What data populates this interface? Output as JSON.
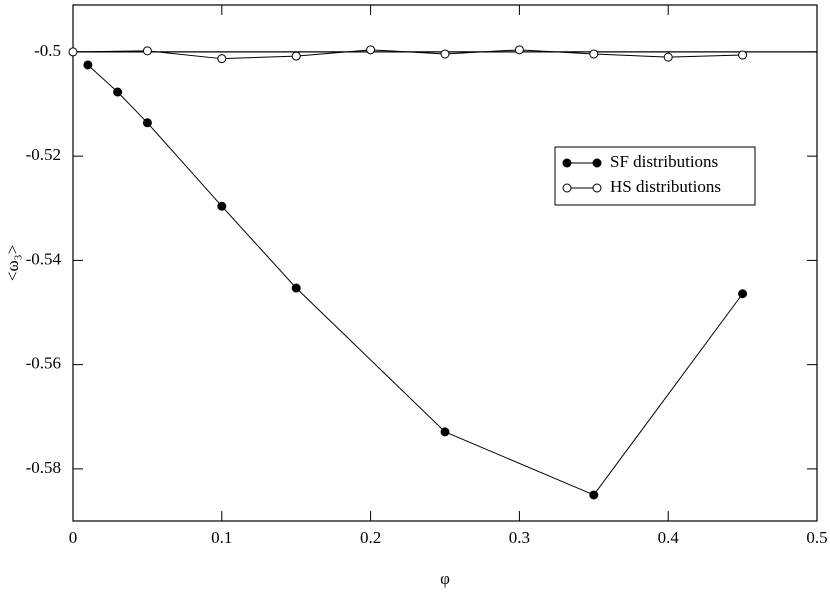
{
  "chart_data": {
    "type": "line",
    "x_label": "φ",
    "y_label": "<ω₃>",
    "xlim": [
      0,
      0.5
    ],
    "ylim": [
      -0.59,
      -0.491
    ],
    "xticks": [
      0,
      0.1,
      0.2,
      0.3,
      0.4,
      0.5
    ],
    "yticks": [
      -0.5,
      -0.52,
      -0.54,
      -0.56,
      -0.58
    ],
    "reference_line": -0.5,
    "legend_position": "right",
    "series": [
      {
        "name": "SF distributions",
        "color": "#000000",
        "marker": "filled",
        "x": [
          0.01,
          0.03,
          0.05,
          0.1,
          0.15,
          0.25,
          0.35,
          0.45
        ],
        "values": [
          -0.5025,
          -0.5077,
          -0.5136,
          -0.5296,
          -0.5453,
          -0.5729,
          -0.585,
          -0.5464
        ]
      },
      {
        "name": "HS distributions",
        "color": "#000000",
        "marker": "open",
        "x": [
          0,
          0.05,
          0.1,
          0.15,
          0.2,
          0.25,
          0.3,
          0.35,
          0.4,
          0.45
        ],
        "values": [
          -0.5,
          -0.4998,
          -0.5013,
          -0.5008,
          -0.4996,
          -0.5004,
          -0.4996,
          -0.5004,
          -0.501,
          -0.5006
        ]
      }
    ]
  }
}
